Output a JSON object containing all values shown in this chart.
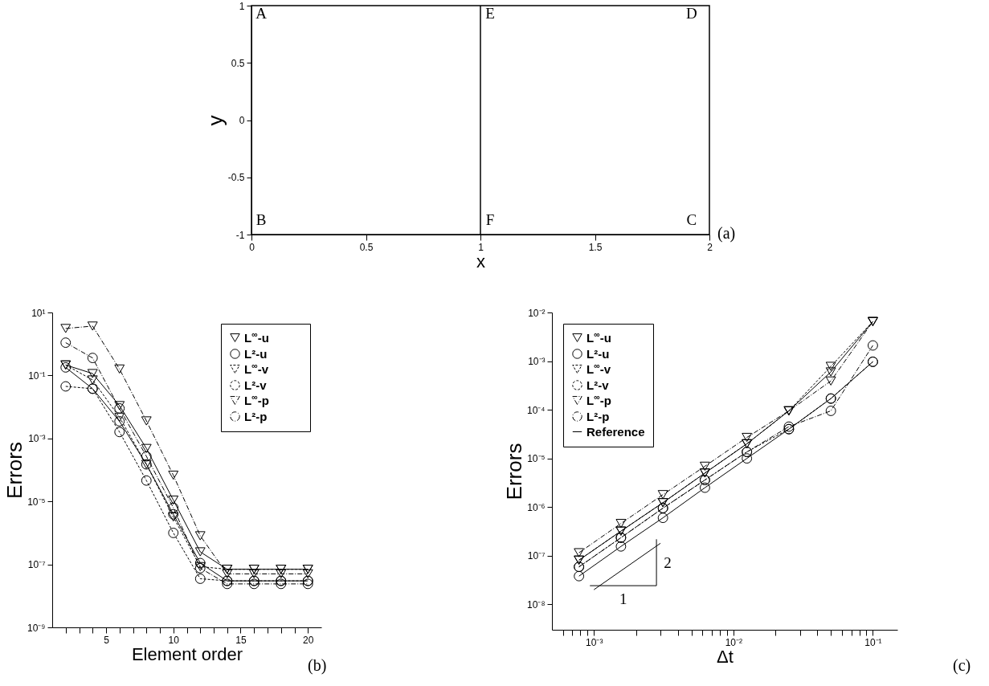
{
  "chart_data": [
    {
      "type": "scatter",
      "xlabel": "x",
      "ylabel": "y",
      "xlim": [
        0,
        2
      ],
      "ylim": [
        -1,
        1
      ],
      "xticks": [
        0,
        0.5,
        1,
        1.5,
        2
      ],
      "yticks": [
        -1,
        -0.5,
        0,
        0.5,
        1
      ],
      "ref_lines": [
        {
          "axis": "x",
          "value": 1,
          "color": "#000000"
        }
      ],
      "annotations": [
        "A",
        "B",
        "C",
        "D",
        "E",
        "F",
        "(a)"
      ]
    },
    {
      "type": "line",
      "xlabel": "Element order",
      "ylabel": "Errors",
      "log": "y",
      "legend": "top right",
      "xlim": [
        1,
        21
      ],
      "ylim": [
        1e-09,
        10
      ],
      "xticks": [
        {
          "value": 2,
          "label": null
        },
        {
          "value": 3,
          "label": null
        },
        {
          "value": 4,
          "label": null
        },
        5,
        {
          "value": 6,
          "label": null
        },
        {
          "value": 7,
          "label": null
        },
        {
          "value": 8,
          "label": null
        },
        {
          "value": 9,
          "label": null
        },
        10,
        {
          "value": 11,
          "label": null
        },
        {
          "value": 12,
          "label": null
        },
        {
          "value": 13,
          "label": null
        },
        {
          "value": 14,
          "label": null
        },
        15,
        {
          "value": 16,
          "label": null
        },
        {
          "value": 17,
          "label": null
        },
        {
          "value": 18,
          "label": null
        },
        {
          "value": 19,
          "label": null
        },
        20
      ],
      "yticks": [
        {
          "value": 1e-09,
          "label": "10⁻⁹"
        },
        {
          "value": 1e-07,
          "label": "10⁻⁷"
        },
        {
          "value": 1e-05,
          "label": "10⁻⁵"
        },
        {
          "value": 0.001,
          "label": "10⁻³"
        },
        {
          "value": 0.1,
          "label": "10⁻¹"
        },
        {
          "value": 10,
          "label": "10¹"
        }
      ],
      "x": [
        2,
        4,
        6,
        8,
        10,
        12,
        14,
        16,
        18,
        20
      ],
      "series": [
        {
          "name": "L$^{∞}$-u",
          "color": "#000000",
          "marker": "triangle",
          "line_style": "solid",
          "values": [
            0.215,
            0.115,
            0.011,
            0.00048,
            1.1e-05,
            2.5e-07,
            7e-08,
            7e-08,
            7e-08,
            7e-08
          ]
        },
        {
          "name": "L²-u",
          "color": "#000000",
          "marker": "circle",
          "line_style": "solid",
          "values": [
            0.18,
            0.038,
            0.0035,
            0.00015,
            3.9e-06,
            1.1e-07,
            3e-08,
            3e-08,
            3e-08,
            3e-08
          ]
        },
        {
          "name": "L$^{∞}$-v",
          "color": "#000000",
          "marker": "triangle",
          "line_style": "dashed",
          "values": [
            0.215,
            0.072,
            0.0047,
            0.00015,
            3.2e-06,
            8.5e-08,
            7e-08,
            7e-08,
            7e-08,
            7e-08
          ]
        },
        {
          "name": "L²-v",
          "color": "#000000",
          "marker": "circle",
          "line_style": "dashed",
          "values": [
            0.045,
            0.038,
            0.0016,
            4.6e-05,
            1e-06,
            3.5e-08,
            3e-08,
            3e-08,
            3e-08,
            3e-08
          ]
        },
        {
          "name": "L$^{∞}$-p",
          "color": "#000000",
          "marker": "triangle",
          "line_style": "dotted",
          "values": [
            3.1,
            3.7,
            0.16,
            0.0036,
            6.8e-05,
            8.1e-07,
            5e-08,
            5e-08,
            5e-08,
            5e-08
          ]
        },
        {
          "name": "L²-p",
          "color": "#000000",
          "marker": "circle",
          "line_style": "dotted",
          "values": [
            1.1,
            0.36,
            0.009,
            0.00027,
            6.3e-06,
            7.6e-08,
            2.4e-08,
            2.4e-08,
            2.4e-08,
            2.4e-08
          ]
        }
      ],
      "annotations": [
        "(b)"
      ]
    },
    {
      "type": "line",
      "xlabel": "Δt",
      "ylabel": "Errors",
      "log": "xy",
      "legend": "top left",
      "xlim": [
        0.0005,
        0.15
      ],
      "ylim": [
        3e-09,
        0.01
      ],
      "xticks": [
        {
          "value": 0.0006,
          "label": null
        },
        {
          "value": 0.0007,
          "label": null
        },
        {
          "value": 0.0008,
          "label": null
        },
        {
          "value": 0.0009,
          "label": null
        },
        {
          "value": 0.001,
          "label": "10⁻³"
        },
        {
          "value": 0.002,
          "label": null
        },
        {
          "value": 0.003,
          "label": null
        },
        {
          "value": 0.004,
          "label": null
        },
        {
          "value": 0.005,
          "label": null
        },
        {
          "value": 0.006,
          "label": null
        },
        {
          "value": 0.007,
          "label": null
        },
        {
          "value": 0.008,
          "label": null
        },
        {
          "value": 0.009,
          "label": null
        },
        {
          "value": 0.01,
          "label": "10⁻²"
        },
        {
          "value": 0.02,
          "label": null
        },
        {
          "value": 0.03,
          "label": null
        },
        {
          "value": 0.04,
          "label": null
        },
        {
          "value": 0.05,
          "label": null
        },
        {
          "value": 0.06,
          "label": null
        },
        {
          "value": 0.07,
          "label": null
        },
        {
          "value": 0.08,
          "label": null
        },
        {
          "value": 0.09,
          "label": null
        },
        {
          "value": 0.1,
          "label": "10⁻¹"
        }
      ],
      "yticks": [
        {
          "value": 1e-08,
          "label": "10⁻⁸"
        },
        {
          "value": 1e-07,
          "label": "10⁻⁷"
        },
        {
          "value": 1e-06,
          "label": "10⁻⁶"
        },
        {
          "value": 1e-05,
          "label": "10⁻⁵"
        },
        {
          "value": 0.0001,
          "label": "10⁻⁴"
        },
        {
          "value": 0.001,
          "label": "10⁻³"
        },
        {
          "value": 0.01,
          "label": "10⁻²"
        }
      ],
      "series": [
        {
          "name": "L$^{∞}$-u",
          "color": "#000000",
          "marker": "triangle",
          "line_style": "solid",
          "x": [
            0.00078125,
            0.0015625,
            0.003125,
            0.00625,
            0.0125,
            0.025,
            0.05,
            0.1
          ],
          "values": [
            8.1e-08,
            3.2e-07,
            1.23e-06,
            5e-06,
            2e-05,
            9.5e-05,
            0.0006,
            0.0065
          ]
        },
        {
          "name": "L²-u",
          "color": "#000000",
          "marker": "circle",
          "line_style": "solid",
          "x": [
            0.00078125,
            0.0015625,
            0.003125,
            0.00625,
            0.0125,
            0.025,
            0.05,
            0.1
          ],
          "values": [
            3.8e-08,
            1.55e-07,
            6e-07,
            2.5e-06,
            1e-05,
            4e-05,
            0.00017,
            0.00097
          ]
        },
        {
          "name": "L$^{∞}$-v",
          "color": "#000000",
          "marker": "triangle",
          "line_style": "dashed",
          "x": [
            0.00078125,
            0.0015625,
            0.003125,
            0.00625,
            0.0125,
            0.025,
            0.05,
            0.1
          ],
          "values": [
            8.1e-08,
            3.2e-07,
            1.23e-06,
            5e-06,
            2e-05,
            9.5e-05,
            0.00078,
            0.0065
          ]
        },
        {
          "name": "L²-v",
          "color": "#000000",
          "marker": "circle",
          "line_style": "dashed",
          "x": [
            0.00078125,
            0.0015625,
            0.003125,
            0.00625,
            0.0125,
            0.025,
            0.05,
            0.1
          ],
          "values": [
            5.9e-08,
            2.35e-07,
            9.5e-07,
            3.6e-06,
            1.36e-05,
            4e-05,
            0.00017,
            0.00097
          ]
        },
        {
          "name": "L$^{∞}$-p",
          "color": "#000000",
          "marker": "triangle",
          "line_style": "dotted",
          "x": [
            0.00078125,
            0.0015625,
            0.003125,
            0.00625,
            0.0125,
            0.025,
            0.05,
            0.1
          ],
          "values": [
            1.15e-07,
            4.6e-07,
            1.8e-06,
            6.9e-06,
            2.7e-05,
            9.5e-05,
            0.00039,
            0.0065
          ]
        },
        {
          "name": "L²-p",
          "color": "#000000",
          "marker": "circle",
          "line_style": "dotted",
          "x": [
            0.00078125,
            0.0015625,
            0.003125,
            0.00625,
            0.0125,
            0.025,
            0.05,
            0.1
          ],
          "values": [
            5.9e-08,
            2.35e-07,
            9.5e-07,
            3.6e-06,
            1.36e-05,
            4.5e-05,
            9.5e-05,
            0.0021
          ]
        },
        {
          "name": "Reference",
          "color": "#000000",
          "marker": "none",
          "line_style": "solid",
          "x": [
            0.001,
            0.003
          ],
          "values": [
            2e-08,
            1.8e-07
          ]
        }
      ],
      "annotations": [
        "1",
        "2",
        "(c)"
      ]
    }
  ]
}
